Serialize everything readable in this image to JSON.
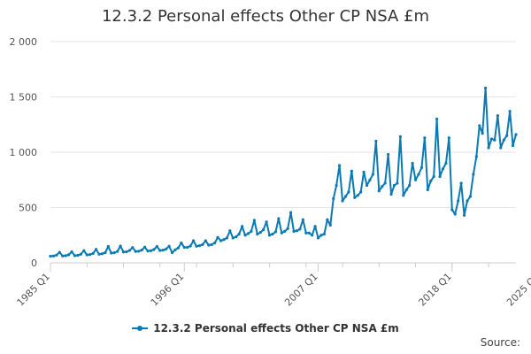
{
  "title": "12.3.2 Personal effects Other CP NSA £m",
  "legend_label": "12.3.2 Personal effects Other CP NSA £m",
  "source_label": "Source:",
  "colors": {
    "series": "#0a7ab4",
    "grid": "#e6e6e6",
    "axis": "#cccccc"
  },
  "chart_data": {
    "type": "line",
    "title": "12.3.2 Personal effects Other CP NSA £m",
    "xlabel": "",
    "ylabel": "",
    "ylim": [
      0,
      2000
    ],
    "y_ticks": [
      0,
      500,
      1000,
      1500,
      2000
    ],
    "y_tick_labels": [
      "0",
      "500",
      "1 000",
      "1 500",
      "2 000"
    ],
    "x_tick_labels": [
      "1985 Q1",
      "1996 Q1",
      "2007 Q1",
      "2018 Q1",
      "2025 Q2"
    ],
    "grid": true,
    "legend_position": "bottom",
    "series": [
      {
        "name": "12.3.2 Personal effects Other CP NSA £m",
        "x_start": "1985 Q1",
        "x_end": "2025 Q2",
        "frequency": "quarterly",
        "values": [
          60,
          62,
          70,
          95,
          62,
          65,
          73,
          100,
          65,
          68,
          78,
          110,
          72,
          75,
          85,
          122,
          78,
          82,
          92,
          148,
          88,
          92,
          103,
          152,
          98,
          100,
          112,
          138,
          103,
          105,
          115,
          142,
          107,
          110,
          120,
          148,
          112,
          115,
          125,
          150,
          92,
          118,
          135,
          180,
          140,
          140,
          152,
          200,
          150,
          155,
          165,
          200,
          160,
          165,
          180,
          230,
          200,
          210,
          225,
          290,
          225,
          235,
          260,
          330,
          250,
          265,
          285,
          385,
          260,
          275,
          300,
          370,
          250,
          260,
          280,
          400,
          270,
          285,
          310,
          455,
          285,
          290,
          305,
          390,
          270,
          270,
          250,
          330,
          225,
          250,
          260,
          390,
          340,
          580,
          700,
          880,
          560,
          600,
          640,
          830,
          590,
          610,
          640,
          820,
          700,
          750,
          800,
          1100,
          650,
          690,
          720,
          980,
          620,
          700,
          720,
          1140,
          610,
          660,
          700,
          900,
          750,
          800,
          860,
          1130,
          660,
          740,
          780,
          1300,
          780,
          850,
          900,
          1130,
          480,
          440,
          560,
          720,
          430,
          560,
          600,
          800,
          960,
          1240,
          1170,
          1580,
          1040,
          1120,
          1110,
          1330,
          1040,
          1110,
          1150,
          1370,
          1060,
          1160
        ]
      }
    ]
  }
}
